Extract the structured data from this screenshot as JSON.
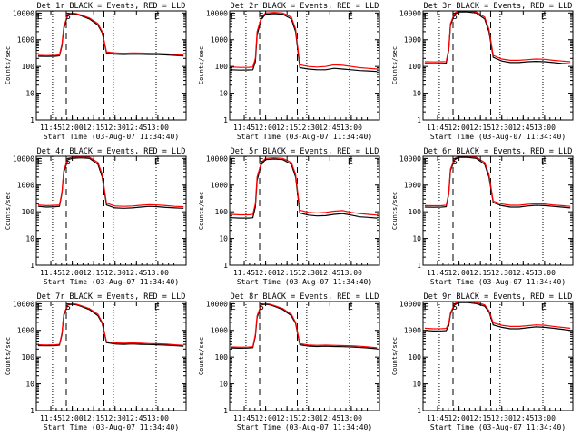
{
  "page": {
    "colors": {
      "background": "#ffffff",
      "axes": "#000000",
      "events": "#000000",
      "lld": "#ff0000"
    }
  },
  "common": {
    "xlabel": "Start Time (03-Aug-07 11:34:40)",
    "ylabel": "Counts/sec",
    "x_ticks": [
      {
        "t": 11.75,
        "label": "11:45"
      },
      {
        "t": 12.0,
        "label": "12:00"
      },
      {
        "t": 12.25,
        "label": "12:15"
      },
      {
        "t": 12.5,
        "label": "12:30"
      },
      {
        "t": 12.75,
        "label": "12:45"
      },
      {
        "t": 13.0,
        "label": "13:00"
      }
    ],
    "y_ticks": [
      {
        "v": 1,
        "label": "1"
      },
      {
        "v": 10,
        "label": "10"
      },
      {
        "v": 100,
        "label": "100"
      },
      {
        "v": 1000,
        "label": "1000"
      },
      {
        "v": 10000,
        "label": "10000"
      }
    ],
    "xlim": [
      11.58,
      13.33
    ],
    "ylim": [
      1,
      12000
    ],
    "y_scale": "log",
    "dotted_lines_x": [
      11.77,
      12.48,
      12.98
    ],
    "dashed_lines_x": [
      11.93,
      12.37
    ],
    "marker_labels": [
      {
        "t": 11.62,
        "label": "E"
      },
      {
        "t": 11.95,
        "label": "S"
      },
      {
        "t": 12.99,
        "label": "E"
      }
    ]
  },
  "chart_data": [
    {
      "type": "line",
      "title": "Det 1r BLACK = Events, RED = LLD",
      "series": [
        {
          "name": "Events",
          "x": [
            11.6,
            11.7,
            11.8,
            11.85,
            11.88,
            11.9,
            11.95,
            12.0,
            12.05,
            12.1,
            12.2,
            12.3,
            12.35,
            12.4,
            12.5,
            12.6,
            12.7,
            12.8,
            12.9,
            13.0,
            13.1,
            13.2,
            13.3
          ],
          "values": [
            240,
            235,
            240,
            250,
            600,
            2500,
            9000,
            9500,
            9000,
            8000,
            6000,
            3500,
            1800,
            320,
            290,
            280,
            290,
            285,
            280,
            280,
            270,
            260,
            245
          ]
        },
        {
          "name": "LLD",
          "x": [
            11.6,
            11.7,
            11.8,
            11.85,
            11.88,
            11.9,
            11.95,
            12.0,
            12.05,
            12.1,
            12.2,
            12.3,
            12.35,
            12.4,
            12.5,
            12.6,
            12.7,
            12.8,
            12.9,
            13.0,
            13.1,
            13.2,
            13.3
          ],
          "values": [
            260,
            255,
            260,
            270,
            700,
            3000,
            9500,
            10000,
            9500,
            8500,
            6500,
            4000,
            2000,
            350,
            320,
            310,
            320,
            315,
            310,
            305,
            295,
            280,
            265
          ]
        }
      ]
    },
    {
      "type": "line",
      "title": "Det 2r BLACK = Events, RED = LLD",
      "series": [
        {
          "name": "Events",
          "x": [
            11.6,
            11.7,
            11.8,
            11.85,
            11.88,
            11.9,
            11.95,
            12.0,
            12.1,
            12.2,
            12.3,
            12.35,
            12.4,
            12.5,
            12.6,
            12.7,
            12.8,
            12.9,
            13.0,
            13.1,
            13.2,
            13.3
          ],
          "values": [
            75,
            73,
            74,
            75,
            150,
            1500,
            6000,
            9000,
            9500,
            9000,
            6000,
            2000,
            90,
            80,
            75,
            75,
            85,
            80,
            75,
            70,
            68,
            65
          ]
        },
        {
          "name": "LLD",
          "x": [
            11.6,
            11.7,
            11.8,
            11.85,
            11.88,
            11.9,
            11.95,
            12.0,
            12.1,
            12.2,
            12.3,
            12.35,
            12.4,
            12.5,
            12.6,
            12.7,
            12.8,
            12.9,
            13.0,
            13.1,
            13.2,
            13.3
          ],
          "values": [
            95,
            92,
            93,
            95,
            200,
            2000,
            7000,
            10000,
            10500,
            10000,
            7000,
            2500,
            115,
            100,
            95,
            100,
            115,
            110,
            100,
            90,
            85,
            80
          ]
        }
      ]
    },
    {
      "type": "line",
      "title": "Det 3r BLACK = Events, RED = LLD",
      "series": [
        {
          "name": "Events",
          "x": [
            11.6,
            11.7,
            11.8,
            11.85,
            11.88,
            11.9,
            11.95,
            12.0,
            12.1,
            12.2,
            12.3,
            12.35,
            12.4,
            12.5,
            12.6,
            12.7,
            12.8,
            12.9,
            13.0,
            13.1,
            13.2,
            13.3
          ],
          "values": [
            130,
            128,
            130,
            132,
            400,
            3500,
            9000,
            11000,
            11000,
            10000,
            6000,
            2000,
            220,
            160,
            140,
            140,
            150,
            155,
            150,
            140,
            130,
            125
          ]
        },
        {
          "name": "LLD",
          "x": [
            11.6,
            11.7,
            11.8,
            11.85,
            11.88,
            11.9,
            11.95,
            12.0,
            12.1,
            12.2,
            12.3,
            12.35,
            12.4,
            12.5,
            12.6,
            12.7,
            12.8,
            12.9,
            13.0,
            13.1,
            13.2,
            13.3
          ],
          "values": [
            150,
            148,
            150,
            152,
            450,
            4000,
            10000,
            12000,
            12000,
            11000,
            7000,
            2500,
            260,
            190,
            170,
            170,
            180,
            190,
            185,
            170,
            160,
            150
          ]
        }
      ]
    },
    {
      "type": "line",
      "title": "Det 4r BLACK = Events, RED = LLD",
      "series": [
        {
          "name": "Events",
          "x": [
            11.6,
            11.7,
            11.8,
            11.85,
            11.88,
            11.9,
            11.95,
            12.0,
            12.1,
            12.2,
            12.3,
            12.35,
            12.4,
            12.5,
            12.6,
            12.7,
            12.8,
            12.9,
            13.0,
            13.1,
            13.2,
            13.3
          ],
          "values": [
            160,
            150,
            155,
            160,
            500,
            3000,
            9000,
            10000,
            10500,
            10000,
            6000,
            2000,
            180,
            140,
            135,
            140,
            150,
            160,
            155,
            145,
            140,
            135
          ]
        },
        {
          "name": "LLD",
          "x": [
            11.6,
            11.7,
            11.8,
            11.85,
            11.88,
            11.9,
            11.95,
            12.0,
            12.1,
            12.2,
            12.3,
            12.35,
            12.4,
            12.5,
            12.6,
            12.7,
            12.8,
            12.9,
            13.0,
            13.1,
            13.2,
            13.3
          ],
          "values": [
            180,
            170,
            175,
            180,
            550,
            3500,
            10000,
            11000,
            11500,
            11000,
            7000,
            2500,
            210,
            165,
            160,
            165,
            175,
            185,
            180,
            170,
            160,
            155
          ]
        }
      ]
    },
    {
      "type": "line",
      "title": "Det 5r BLACK = Events, RED = LLD",
      "series": [
        {
          "name": "Events",
          "x": [
            11.6,
            11.7,
            11.8,
            11.85,
            11.88,
            11.9,
            11.95,
            12.0,
            12.1,
            12.2,
            12.3,
            12.35,
            12.4,
            12.5,
            12.6,
            12.7,
            12.8,
            12.9,
            13.0,
            13.1,
            13.2,
            13.3
          ],
          "values": [
            60,
            58,
            58,
            60,
            150,
            1500,
            6000,
            9000,
            9500,
            9000,
            6000,
            2000,
            90,
            75,
            70,
            72,
            80,
            85,
            75,
            65,
            62,
            58
          ]
        },
        {
          "name": "LLD",
          "x": [
            11.6,
            11.7,
            11.8,
            11.85,
            11.88,
            11.9,
            11.95,
            12.0,
            12.1,
            12.2,
            12.3,
            12.35,
            12.4,
            12.5,
            12.6,
            12.7,
            12.8,
            12.9,
            13.0,
            13.1,
            13.2,
            13.3
          ],
          "values": [
            80,
            77,
            77,
            80,
            200,
            2000,
            7000,
            10000,
            10500,
            10000,
            7000,
            2500,
            115,
            95,
            90,
            95,
            105,
            110,
            95,
            85,
            80,
            75
          ]
        }
      ]
    },
    {
      "type": "line",
      "title": "Det 6r BLACK = Events, RED = LLD",
      "series": [
        {
          "name": "Events",
          "x": [
            11.6,
            11.7,
            11.8,
            11.85,
            11.88,
            11.9,
            11.95,
            12.0,
            12.1,
            12.2,
            12.3,
            12.35,
            12.4,
            12.5,
            12.6,
            12.7,
            12.8,
            12.9,
            13.0,
            13.1,
            13.2,
            13.3
          ],
          "values": [
            150,
            148,
            150,
            155,
            450,
            3500,
            9000,
            11000,
            11000,
            10000,
            6000,
            2000,
            220,
            170,
            150,
            150,
            165,
            175,
            170,
            160,
            150,
            140
          ]
        },
        {
          "name": "LLD",
          "x": [
            11.6,
            11.7,
            11.8,
            11.85,
            11.88,
            11.9,
            11.95,
            12.0,
            12.1,
            12.2,
            12.3,
            12.35,
            12.4,
            12.5,
            12.6,
            12.7,
            12.8,
            12.9,
            13.0,
            13.1,
            13.2,
            13.3
          ],
          "values": [
            170,
            168,
            170,
            175,
            500,
            4000,
            10000,
            12000,
            12000,
            11000,
            7000,
            2500,
            250,
            195,
            175,
            175,
            190,
            200,
            195,
            180,
            170,
            160
          ]
        }
      ]
    },
    {
      "type": "line",
      "title": "Det 7r BLACK = Events, RED = LLD",
      "series": [
        {
          "name": "Events",
          "x": [
            11.6,
            11.7,
            11.8,
            11.85,
            11.88,
            11.9,
            11.95,
            12.0,
            12.05,
            12.1,
            12.2,
            12.3,
            12.35,
            12.4,
            12.5,
            12.6,
            12.7,
            12.8,
            12.9,
            13.0,
            13.1,
            13.2,
            13.3
          ],
          "values": [
            270,
            265,
            270,
            280,
            700,
            3500,
            9000,
            9500,
            9000,
            8000,
            6000,
            3500,
            1800,
            350,
            310,
            300,
            310,
            300,
            295,
            290,
            280,
            270,
            255
          ]
        },
        {
          "name": "LLD",
          "x": [
            11.6,
            11.7,
            11.8,
            11.85,
            11.88,
            11.9,
            11.95,
            12.0,
            12.05,
            12.1,
            12.2,
            12.3,
            12.35,
            12.4,
            12.5,
            12.6,
            12.7,
            12.8,
            12.9,
            13.0,
            13.1,
            13.2,
            13.3
          ],
          "values": [
            290,
            285,
            290,
            300,
            800,
            4000,
            9500,
            10000,
            9500,
            8500,
            6500,
            4000,
            2000,
            380,
            340,
            330,
            340,
            330,
            320,
            315,
            305,
            290,
            275
          ]
        }
      ]
    },
    {
      "type": "line",
      "title": "Det 8r BLACK = Events, RED = LLD",
      "series": [
        {
          "name": "Events",
          "x": [
            11.6,
            11.7,
            11.8,
            11.85,
            11.88,
            11.9,
            11.95,
            12.0,
            12.05,
            12.1,
            12.2,
            12.3,
            12.35,
            12.4,
            12.5,
            12.6,
            12.7,
            12.8,
            12.9,
            13.0,
            13.1,
            13.2,
            13.3
          ],
          "values": [
            220,
            215,
            218,
            225,
            600,
            3000,
            9000,
            9500,
            9000,
            8000,
            6000,
            3500,
            1800,
            290,
            260,
            250,
            255,
            250,
            245,
            240,
            230,
            220,
            205
          ]
        },
        {
          "name": "LLD",
          "x": [
            11.6,
            11.7,
            11.8,
            11.85,
            11.88,
            11.9,
            11.95,
            12.0,
            12.05,
            12.1,
            12.2,
            12.3,
            12.35,
            12.4,
            12.5,
            12.6,
            12.7,
            12.8,
            12.9,
            13.0,
            13.1,
            13.2,
            13.3
          ],
          "values": [
            240,
            235,
            238,
            245,
            700,
            3500,
            9500,
            10000,
            9500,
            8500,
            6500,
            4000,
            2000,
            320,
            285,
            275,
            280,
            275,
            270,
            265,
            255,
            240,
            225
          ]
        }
      ]
    },
    {
      "type": "line",
      "title": "Det 9r BLACK = Events, RED = LLD",
      "series": [
        {
          "name": "Events",
          "x": [
            11.6,
            11.7,
            11.8,
            11.85,
            11.88,
            11.9,
            11.95,
            12.0,
            12.1,
            12.2,
            12.3,
            12.35,
            12.4,
            12.5,
            12.6,
            12.7,
            12.8,
            12.9,
            13.0,
            13.1,
            13.2,
            13.3
          ],
          "values": [
            1000,
            950,
            960,
            980,
            1500,
            4000,
            9000,
            11000,
            11000,
            10000,
            8000,
            5000,
            1600,
            1300,
            1150,
            1150,
            1250,
            1350,
            1300,
            1200,
            1100,
            1000
          ]
        },
        {
          "name": "LLD",
          "x": [
            11.6,
            11.7,
            11.8,
            11.85,
            11.88,
            11.9,
            11.95,
            12.0,
            12.1,
            12.2,
            12.3,
            12.35,
            12.4,
            12.5,
            12.6,
            12.7,
            12.8,
            12.9,
            13.0,
            13.1,
            13.2,
            13.3
          ],
          "values": [
            1200,
            1150,
            1160,
            1180,
            1800,
            4500,
            10000,
            12000,
            12000,
            11000,
            9000,
            5500,
            1900,
            1550,
            1400,
            1400,
            1500,
            1600,
            1550,
            1420,
            1300,
            1200
          ]
        }
      ]
    }
  ]
}
